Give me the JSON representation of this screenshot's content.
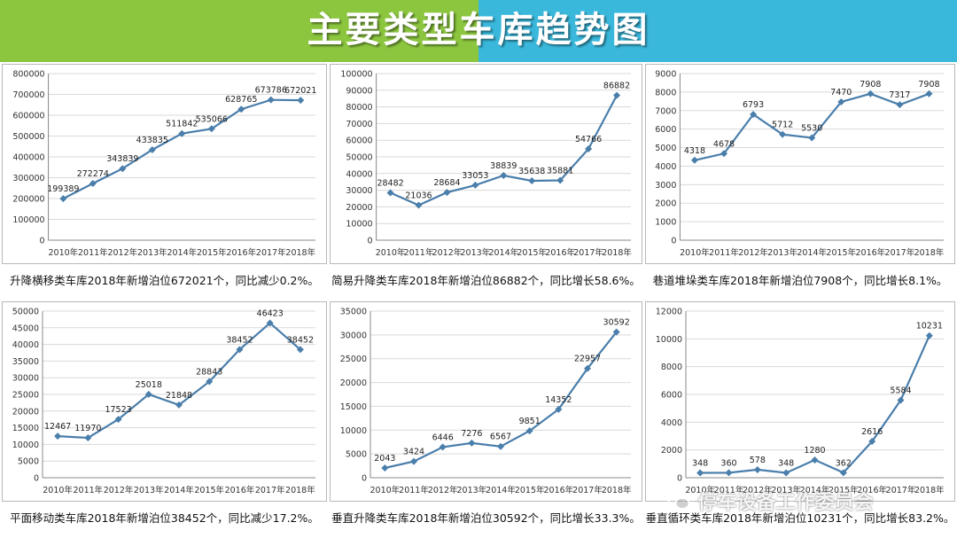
{
  "header": {
    "title": "主要类型车库趋势图"
  },
  "colors": {
    "line": "#4a7eab",
    "grid": "#d9d9d9",
    "axis": "#888888",
    "header_left": "#8cc63f",
    "header_right": "#3ab8dc"
  },
  "watermark": {
    "text": "停车设备工作委员会",
    "icon": "wechat-icon"
  },
  "chart_data": [
    {
      "type": "line",
      "categories": [
        "2010年",
        "2011年",
        "2012年",
        "2013年",
        "2014年",
        "2015年",
        "2016年",
        "2017年",
        "2018年"
      ],
      "values": [
        199389,
        272274,
        343839,
        433835,
        511842,
        535066,
        628765,
        673786,
        672021
      ],
      "ylim": [
        0,
        800000
      ],
      "yticks": [
        0,
        100000,
        200000,
        300000,
        400000,
        500000,
        600000,
        700000,
        800000
      ],
      "labels": [
        "199389",
        "272274",
        "343839",
        "433835",
        "511842",
        "535066",
        "628765",
        "673786",
        "672021"
      ],
      "caption": "升降横移类车库2018年新增泊位672021个，同比减少0.2%。"
    },
    {
      "type": "line",
      "categories": [
        "2010年",
        "2011年",
        "2012年",
        "2013年",
        "2014年",
        "2015年",
        "2016年",
        "2017年",
        "2018年"
      ],
      "values": [
        28482,
        21036,
        28684,
        33053,
        38839,
        35638,
        35881,
        54766,
        86882
      ],
      "ylim": [
        0,
        100000
      ],
      "yticks": [
        0,
        10000,
        20000,
        30000,
        40000,
        50000,
        60000,
        70000,
        80000,
        90000,
        100000
      ],
      "labels": [
        "28482",
        "21036",
        "28684",
        "33053",
        "38839",
        "35638",
        "35881",
        "54766",
        "86882"
      ],
      "caption": "简易升降类车库2018年新增泊位86882个，同比增长58.6%。"
    },
    {
      "type": "line",
      "categories": [
        "2010年",
        "2011年",
        "2012年",
        "2013年",
        "2014年",
        "2015年",
        "2016年",
        "2017年",
        "2018年"
      ],
      "values": [
        4318,
        4678,
        6793,
        5712,
        5530,
        7470,
        7908,
        7317,
        7908
      ],
      "ylim": [
        0,
        9000
      ],
      "yticks": [
        0,
        1000,
        2000,
        3000,
        4000,
        5000,
        6000,
        7000,
        8000,
        9000
      ],
      "labels": [
        "4318",
        "4678",
        "6793",
        "5712",
        "5530",
        "7470",
        "7908",
        "7317",
        "7908"
      ],
      "caption": "巷道堆垛类车库2018年新增泊位7908个，同比增长8.1%。"
    },
    {
      "type": "line",
      "categories": [
        "2010年",
        "2011年",
        "2012年",
        "2013年",
        "2014年",
        "2015年",
        "2016年",
        "2017年",
        "2018年"
      ],
      "values": [
        12467,
        11970,
        17523,
        25018,
        21848,
        28843,
        38452,
        46423,
        38452
      ],
      "ylim": [
        0,
        50000
      ],
      "yticks": [
        0,
        5000,
        10000,
        15000,
        20000,
        25000,
        30000,
        35000,
        40000,
        45000,
        50000
      ],
      "labels": [
        "12467",
        "11970",
        "17523",
        "25018",
        "21848",
        "28843",
        "38452",
        "46423",
        "38452"
      ],
      "caption": "平面移动类车库2018年新增泊位38452个，同比减少17.2%。"
    },
    {
      "type": "line",
      "categories": [
        "2010年",
        "2011年",
        "2012年",
        "2013年",
        "2014年",
        "2015年",
        "2016年",
        "2017年",
        "2018年"
      ],
      "values": [
        2043,
        3424,
        6446,
        7276,
        6567,
        9851,
        14352,
        22957,
        30592
      ],
      "ylim": [
        0,
        35000
      ],
      "yticks": [
        0,
        5000,
        10000,
        15000,
        20000,
        25000,
        30000,
        35000
      ],
      "labels": [
        "2043",
        "3424",
        "6446",
        "7276",
        "6567",
        "9851",
        "14352",
        "22957",
        "30592"
      ],
      "caption": "垂直升降类车库2018年新增泊位30592个，同比增长33.3%。"
    },
    {
      "type": "line",
      "categories": [
        "2010年",
        "2011年",
        "2012年",
        "2013年",
        "2014年",
        "2015年",
        "2016年",
        "2017年",
        "2018年"
      ],
      "values": [
        348,
        360,
        578,
        348,
        1280,
        362,
        2616,
        5584,
        10231
      ],
      "ylim": [
        0,
        12000
      ],
      "yticks": [
        0,
        2000,
        4000,
        6000,
        8000,
        10000,
        12000
      ],
      "labels": [
        "348",
        "360",
        "578",
        "348",
        "1280",
        "362",
        "2616",
        "5584",
        "10231"
      ],
      "caption": "垂直循环类车库2018年新增泊位10231个，同比增长83.2%。"
    }
  ]
}
